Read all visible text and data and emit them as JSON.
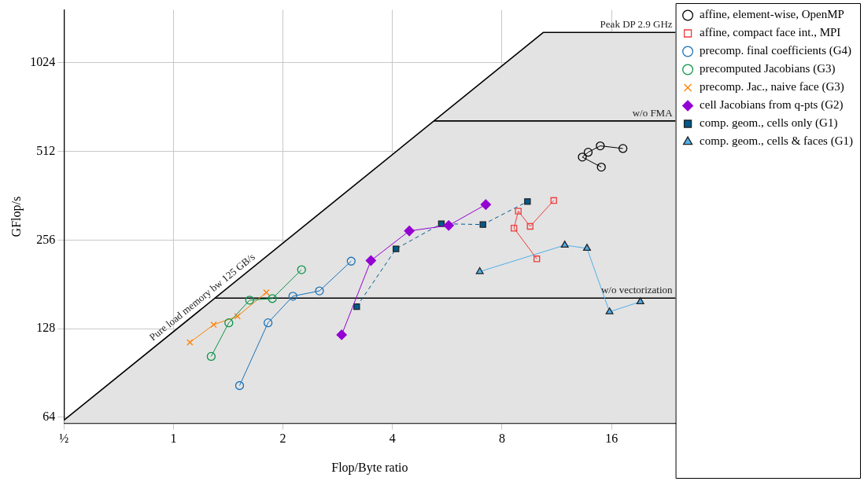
{
  "chart_data": {
    "type": "line",
    "xlabel": "Flop/Byte ratio",
    "ylabel": "GFlop/s",
    "log": "xy",
    "grid": true,
    "legend": "top right",
    "xlim": [
      0.5,
      24
    ],
    "xticks": [
      {
        "value": 0.5,
        "label": "½"
      },
      1,
      2,
      4,
      8,
      16
    ],
    "ylim": [
      61,
      1550
    ],
    "yticks": [
      64,
      128,
      256,
      512,
      1024
    ],
    "annotations": [
      "Pure load memory bw 125 GB/s",
      "Peak DP 2.9 GHz",
      "w/o FMA",
      "w/o vectorization"
    ],
    "series": [
      {
        "type": "area",
        "marker": "none",
        "color": "#e3e3e3",
        "x": [
          0.5,
          10.4,
          24
        ],
        "values": [
          62.5,
          1300,
          1300
        ]
      },
      {
        "type": "line",
        "marker": "none",
        "color": "#000000",
        "x": [
          5.2,
          24
        ],
        "values": [
          650,
          650
        ]
      },
      {
        "type": "line",
        "marker": "none",
        "color": "#000000",
        "x": [
          1.3,
          24
        ],
        "values": [
          162.5,
          162.5
        ]
      },
      {
        "name": "affine, element-wise, OpenMP",
        "marker": "circle",
        "color": "#000000",
        "x": [
          15.0,
          13.3,
          13.8,
          14.9,
          17.2
        ],
        "values": [
          453,
          490,
          509,
          535,
          524
        ]
      },
      {
        "name": "affine, compact face int., MPI",
        "marker": "square",
        "color": "#f03c3c",
        "x": [
          9.97,
          8.63,
          8.87,
          9.56,
          11.1
        ],
        "values": [
          221,
          281,
          321,
          285,
          349
        ]
      },
      {
        "name": "precomp. final coefficients (G4)",
        "marker": "circle",
        "color": "#1a72b8",
        "x": [
          1.52,
          1.82,
          2.13,
          2.52,
          3.08
        ],
        "values": [
          82,
          134,
          165,
          172,
          217
        ]
      },
      {
        "name": "precomputed Jacobians (G3)",
        "marker": "circle",
        "color": "#0a9448",
        "x": [
          1.27,
          1.42,
          1.62,
          1.87,
          2.25
        ],
        "values": [
          103,
          134,
          160,
          162,
          203
        ]
      },
      {
        "name": "precomp. Jac., naive face (G3)",
        "marker": "cross",
        "color": "#ff8000",
        "x": [
          1.11,
          1.29,
          1.5,
          1.8
        ],
        "values": [
          115,
          132,
          141,
          170
        ]
      },
      {
        "name": "cell Jacobians from q-pts (G2)",
        "marker": "diamond",
        "color": "#9400d3",
        "x": [
          2.9,
          3.49,
          4.45,
          5.71,
          7.22
        ],
        "values": [
          122,
          218,
          275,
          287,
          338
        ]
      },
      {
        "name": "comp. geom., cells only (G1)",
        "marker": "square",
        "line_style": "dashed",
        "color": "#005a8c",
        "x": [
          3.19,
          4.09,
          5.45,
          7.09,
          9.4
        ],
        "values": [
          152,
          239,
          291,
          289,
          346
        ]
      },
      {
        "name": "comp. geom., cells & faces (G1)",
        "marker": "triangle",
        "color": "#4fb0e8",
        "x": [
          6.95,
          11.9,
          13.7,
          15.8,
          19.2
        ],
        "values": [
          200,
          246,
          240,
          146,
          158
        ]
      }
    ]
  }
}
